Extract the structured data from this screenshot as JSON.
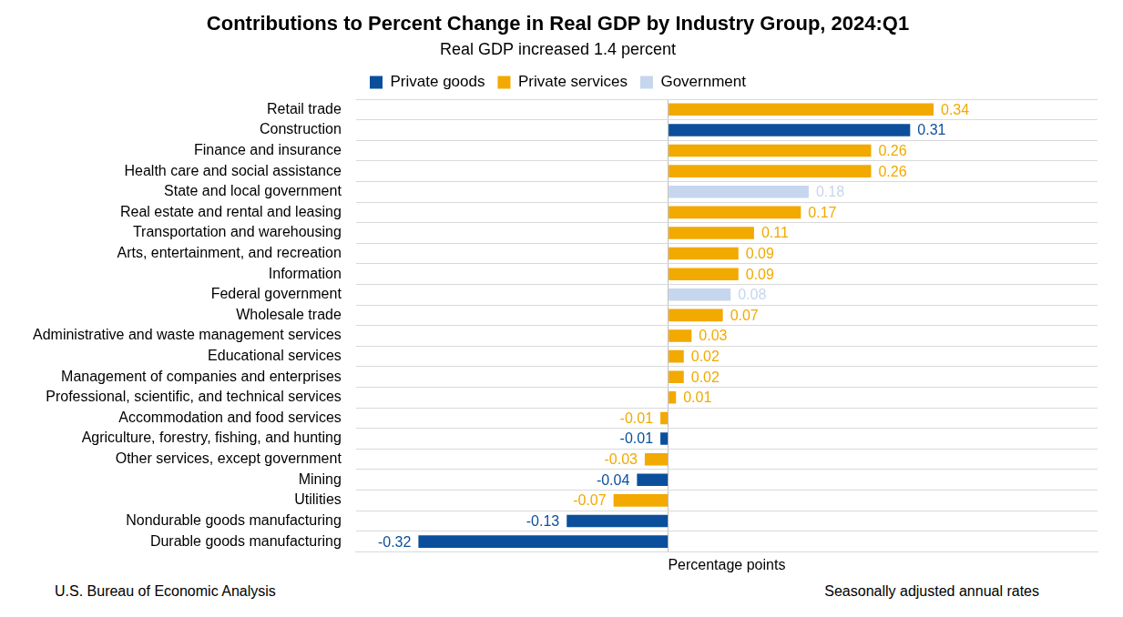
{
  "chart_data": {
    "type": "bar",
    "title": "Contributions to Percent Change in Real GDP by Industry Group, 2024:Q1",
    "subtitle": "Real GDP increased 1.4 percent",
    "xlabel": "Percentage points",
    "source": "U.S. Bureau of Economic Analysis",
    "note": "Seasonally adjusted annual rates",
    "orientation": "horizontal",
    "categories": [
      "Retail trade",
      "Construction",
      "Finance and insurance",
      "Health care and social assistance",
      "State and local government",
      "Real estate and rental and leasing",
      "Transportation and warehousing",
      "Arts, entertainment, and recreation",
      "Information",
      "Federal government",
      "Wholesale trade",
      "Administrative and waste management services",
      "Educational services",
      "Management of companies and enterprises",
      "Professional, scientific, and technical services",
      "Accommodation and food services",
      "Agriculture, forestry, fishing, and hunting",
      "Other services, except government",
      "Mining",
      "Utilities",
      "Nondurable goods manufacturing",
      "Durable goods manufacturing"
    ],
    "series": [
      {
        "name": "Private goods",
        "color": "#0b4f9c",
        "values": [
          null,
          0.31,
          null,
          null,
          null,
          null,
          null,
          null,
          null,
          null,
          null,
          null,
          null,
          null,
          null,
          null,
          -0.01,
          null,
          -0.04,
          null,
          -0.13,
          -0.32
        ]
      },
      {
        "name": "Private services",
        "color": "#f2a900",
        "values": [
          0.34,
          null,
          0.26,
          0.26,
          null,
          0.17,
          0.11,
          0.09,
          0.09,
          null,
          0.07,
          0.03,
          0.02,
          0.02,
          0.01,
          -0.01,
          null,
          -0.03,
          null,
          -0.07,
          null,
          null
        ]
      },
      {
        "name": "Government",
        "color": "#c6d6ee",
        "values": [
          null,
          null,
          null,
          null,
          0.18,
          null,
          null,
          null,
          null,
          0.08,
          null,
          null,
          null,
          null,
          null,
          null,
          null,
          null,
          null,
          null,
          null,
          null
        ]
      }
    ],
    "xlim": [
      -0.4,
      0.55
    ],
    "xticks": [
      0
    ],
    "tick_labels": "y",
    "grid": true,
    "legend": "top",
    "data_labels": true
  }
}
